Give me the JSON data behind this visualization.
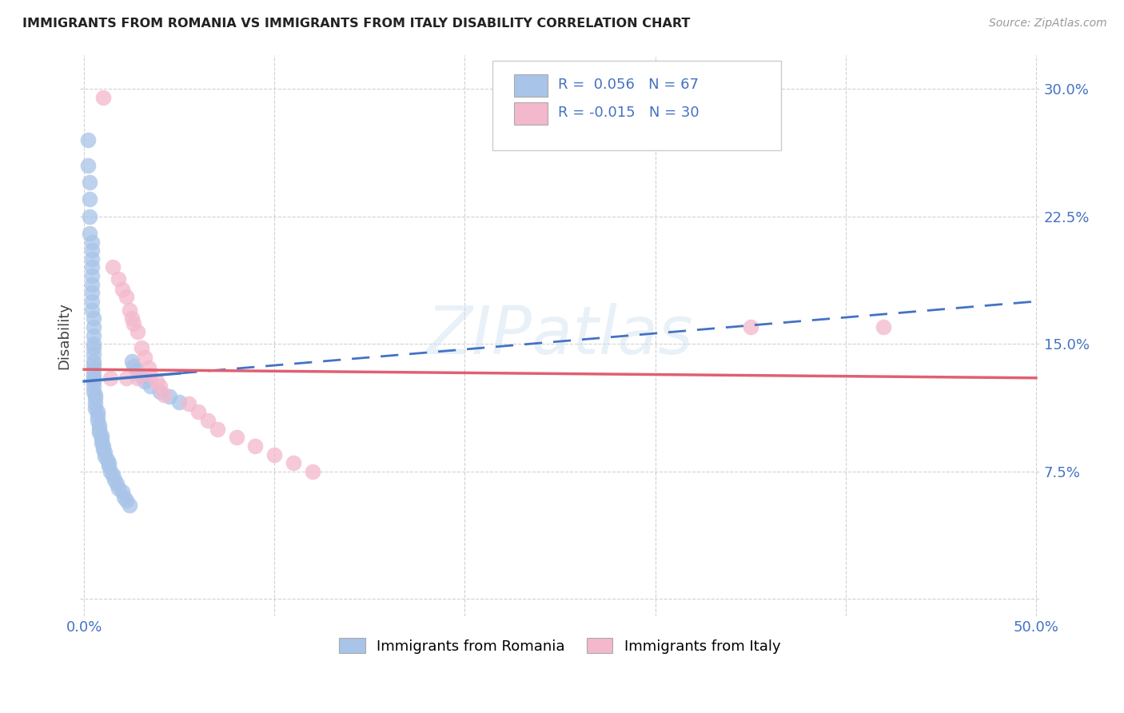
{
  "title": "IMMIGRANTS FROM ROMANIA VS IMMIGRANTS FROM ITALY DISABILITY CORRELATION CHART",
  "source": "Source: ZipAtlas.com",
  "ylabel": "Disability",
  "romania_color": "#a8c4e8",
  "italy_color": "#f4b8cc",
  "romania_line_color": "#4472c4",
  "italy_line_color": "#e06070",
  "watermark": "ZIPatlas",
  "xlim": [
    -0.002,
    0.502
  ],
  "ylim": [
    -0.01,
    0.32
  ],
  "romania_points_x": [
    0.002,
    0.002,
    0.003,
    0.003,
    0.003,
    0.003,
    0.004,
    0.004,
    0.004,
    0.004,
    0.004,
    0.004,
    0.004,
    0.004,
    0.004,
    0.005,
    0.005,
    0.005,
    0.005,
    0.005,
    0.005,
    0.005,
    0.005,
    0.005,
    0.005,
    0.005,
    0.005,
    0.005,
    0.005,
    0.006,
    0.006,
    0.006,
    0.006,
    0.007,
    0.007,
    0.007,
    0.008,
    0.008,
    0.008,
    0.009,
    0.009,
    0.009,
    0.01,
    0.01,
    0.011,
    0.011,
    0.012,
    0.013,
    0.013,
    0.014,
    0.015,
    0.016,
    0.017,
    0.018,
    0.02,
    0.021,
    0.022,
    0.024,
    0.025,
    0.026,
    0.028,
    0.03,
    0.032,
    0.035,
    0.04,
    0.045,
    0.05
  ],
  "romania_points_y": [
    0.27,
    0.255,
    0.245,
    0.235,
    0.225,
    0.215,
    0.21,
    0.205,
    0.2,
    0.195,
    0.19,
    0.185,
    0.18,
    0.175,
    0.17,
    0.165,
    0.16,
    0.155,
    0.15,
    0.148,
    0.144,
    0.14,
    0.138,
    0.135,
    0.132,
    0.13,
    0.128,
    0.125,
    0.122,
    0.12,
    0.118,
    0.115,
    0.112,
    0.11,
    0.108,
    0.105,
    0.102,
    0.1,
    0.098,
    0.096,
    0.094,
    0.092,
    0.09,
    0.088,
    0.086,
    0.084,
    0.082,
    0.08,
    0.078,
    0.075,
    0.073,
    0.07,
    0.068,
    0.065,
    0.063,
    0.06,
    0.058,
    0.055,
    0.14,
    0.137,
    0.134,
    0.131,
    0.128,
    0.125,
    0.122,
    0.119,
    0.116
  ],
  "italy_points_x": [
    0.01,
    0.014,
    0.015,
    0.018,
    0.02,
    0.022,
    0.022,
    0.024,
    0.025,
    0.026,
    0.028,
    0.028,
    0.03,
    0.032,
    0.034,
    0.035,
    0.038,
    0.04,
    0.042,
    0.055,
    0.06,
    0.065,
    0.07,
    0.08,
    0.09,
    0.1,
    0.11,
    0.12,
    0.35,
    0.42
  ],
  "italy_points_y": [
    0.295,
    0.13,
    0.195,
    0.188,
    0.182,
    0.178,
    0.13,
    0.17,
    0.165,
    0.162,
    0.157,
    0.13,
    0.148,
    0.142,
    0.136,
    0.132,
    0.128,
    0.125,
    0.12,
    0.115,
    0.11,
    0.105,
    0.1,
    0.095,
    0.09,
    0.085,
    0.08,
    0.075,
    0.16,
    0.16
  ],
  "rom_line_x0": 0.0,
  "rom_line_y0": 0.128,
  "rom_line_x1": 0.5,
  "rom_line_y1": 0.175,
  "ita_line_x0": 0.0,
  "ita_line_y0": 0.135,
  "ita_line_x1": 0.5,
  "ita_line_y1": 0.13
}
